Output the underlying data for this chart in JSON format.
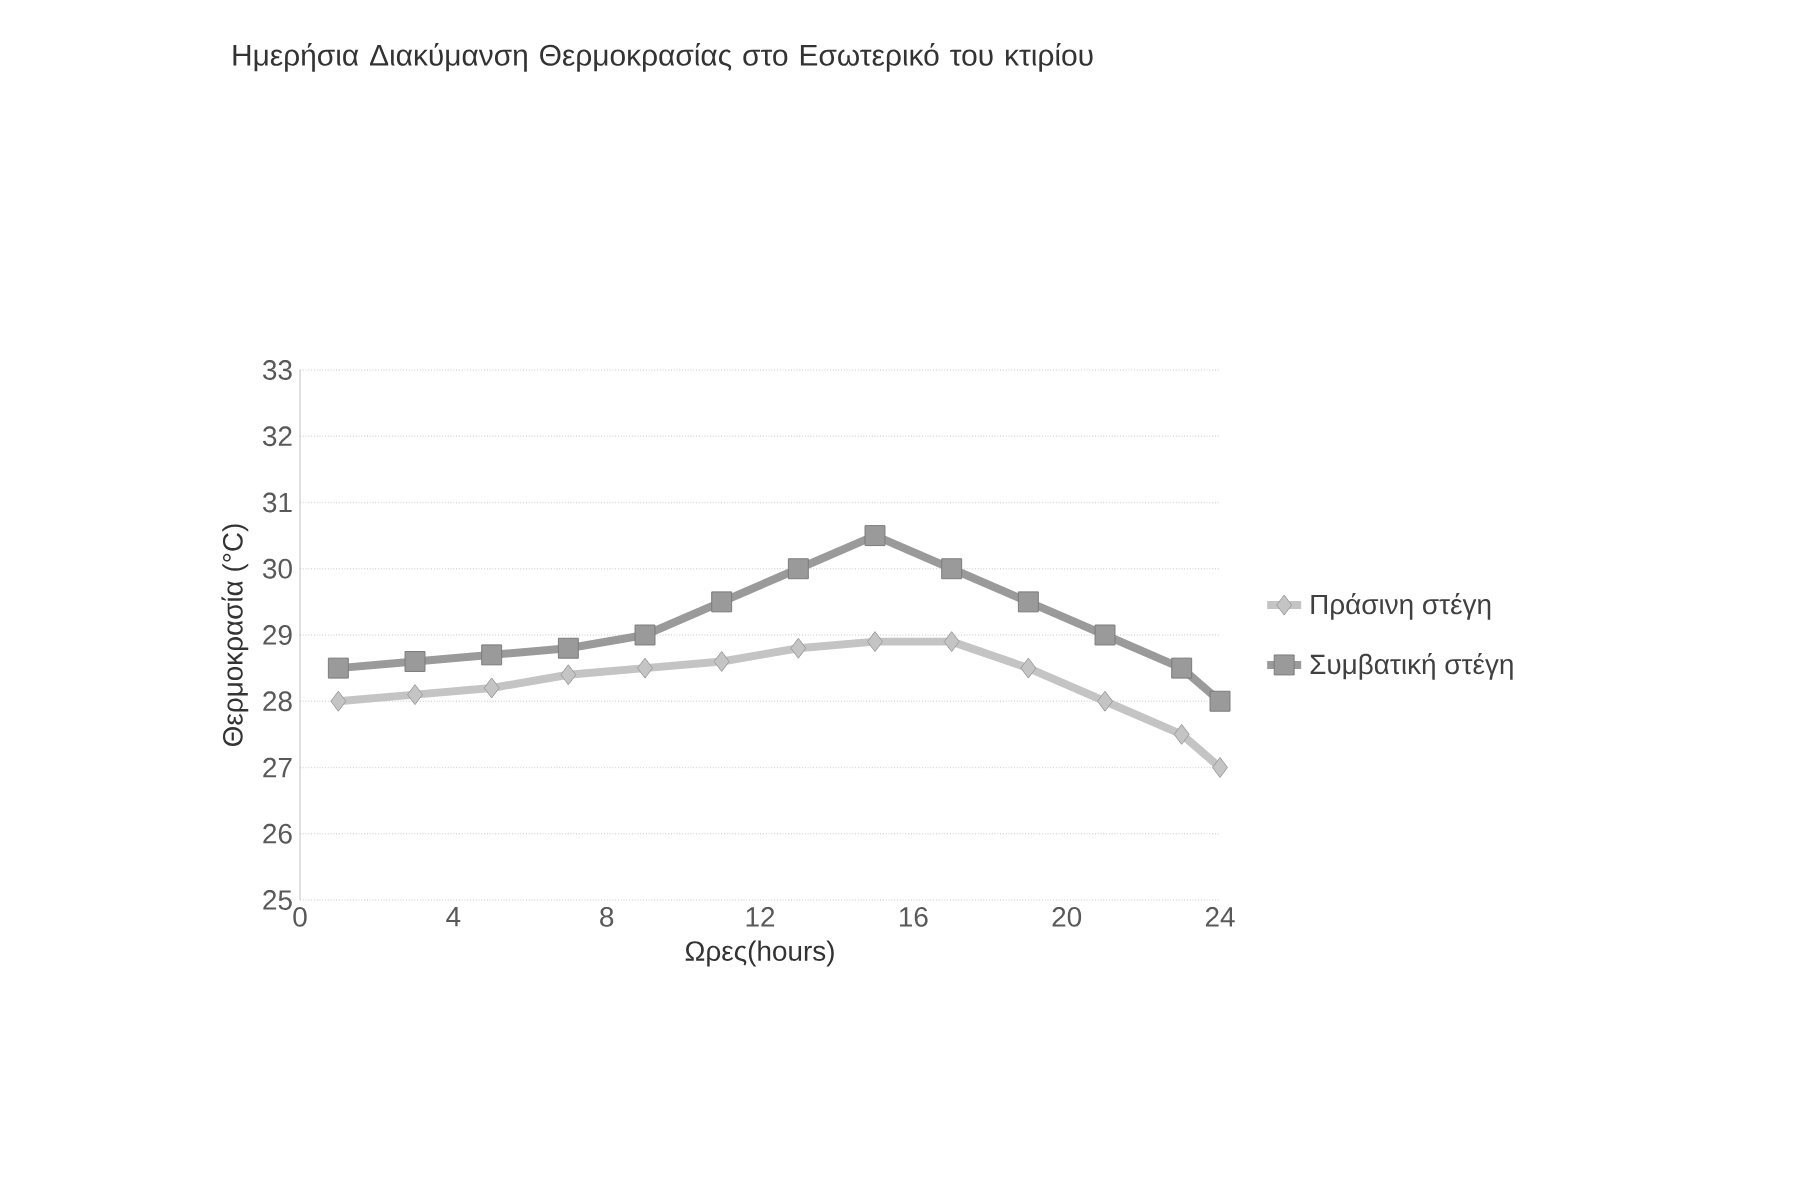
{
  "chart_data": {
    "type": "line",
    "title": "Ημερήσια Διακύμανση Θερμοκρασίας στο Εσωτερικό του κτιρίου",
    "xlabel": "Ωρες(hours)",
    "ylabel": "Θερμοκρασία (°C)",
    "x": [
      1,
      3,
      5,
      7,
      9,
      11,
      13,
      15,
      17,
      19,
      21,
      23,
      24
    ],
    "series": [
      {
        "name": "Πράσινη στέγη",
        "color": "#c4c4c4",
        "marker": "diamond",
        "values": [
          28,
          28.1,
          28.2,
          28.4,
          28.5,
          28.6,
          28.8,
          28.9,
          28.9,
          28.5,
          28,
          27.5,
          27
        ]
      },
      {
        "name": "Συμβατική στέγη",
        "color": "#9a9a9a",
        "marker": "square",
        "values": [
          28.5,
          28.6,
          28.7,
          28.8,
          29,
          29.5,
          30,
          30.5,
          30,
          29.5,
          29,
          28.5,
          28
        ]
      }
    ],
    "xlim": [
      0,
      24
    ],
    "xticks": [
      0,
      4,
      8,
      12,
      16,
      20,
      24
    ],
    "ylim": [
      25,
      33
    ],
    "yticks": [
      25,
      26,
      27,
      28,
      29,
      30,
      31,
      32,
      33
    ],
    "grid": "y",
    "legend": "right"
  }
}
